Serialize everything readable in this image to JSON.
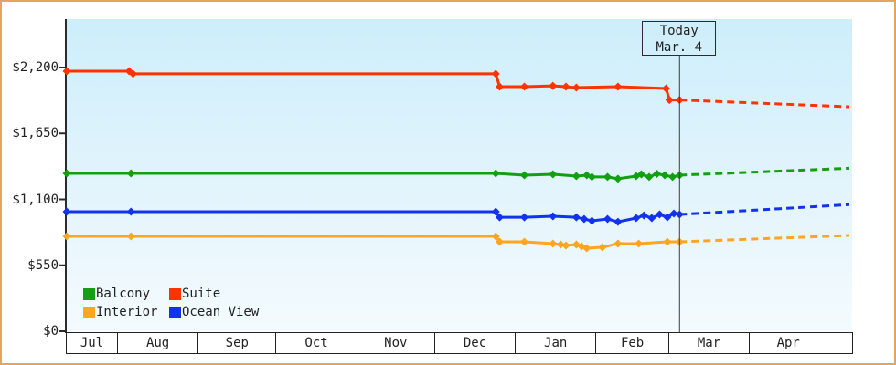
{
  "today": {
    "label": "Today",
    "date": "Mar. 4",
    "day": 235.7
  },
  "legend": [
    {
      "label": "Balcony",
      "color": "#12A012"
    },
    {
      "label": "Suite",
      "color": "#FF3300"
    },
    {
      "label": "Interior",
      "color": "#FFA51F"
    },
    {
      "label": "Ocean View",
      "color": "#1133EE"
    }
  ],
  "colors": {
    "frame_border": "#E8A45C",
    "axis": "#2B2B2B",
    "text": "#222222",
    "today_line": "#3C3C3C",
    "plot_top": "#CDEEFB",
    "plot_bottom": "#F4FBFE"
  },
  "chart_data": {
    "type": "line",
    "title": "",
    "xlabel": "",
    "ylabel": "",
    "grid": false,
    "legend_position": "bottom-left-inside",
    "ylim": [
      0,
      2600
    ],
    "y_ticks": [
      {
        "label": "$0",
        "value": 0
      },
      {
        "label": "$550",
        "value": 550
      },
      {
        "label": "$1,100",
        "value": 1100
      },
      {
        "label": "$1,650",
        "value": 1650
      },
      {
        "label": "$2,200",
        "value": 2200
      }
    ],
    "x_months": [
      {
        "label": "Jul",
        "days": 19.7
      },
      {
        "label": "Aug",
        "days": 31
      },
      {
        "label": "Sep",
        "days": 30
      },
      {
        "label": "Oct",
        "days": 31
      },
      {
        "label": "Nov",
        "days": 30
      },
      {
        "label": "Dec",
        "days": 31
      },
      {
        "label": "Jan",
        "days": 31
      },
      {
        "label": "Feb",
        "days": 28
      },
      {
        "label": "Mar",
        "days": 31
      },
      {
        "label": "Apr",
        "days": 30
      },
      {
        "label": "",
        "days": 9.3
      }
    ],
    "today": {
      "label": "Today",
      "date": "Mar. 4",
      "day": 235.7
    },
    "series": [
      {
        "name": "Suite",
        "color": "#FF3300",
        "solid": [
          [
            0,
            2170
          ],
          [
            24,
            2170
          ],
          [
            25.5,
            2148
          ],
          [
            165,
            2148
          ],
          [
            166.5,
            2040
          ],
          [
            176,
            2040
          ],
          [
            187,
            2047
          ],
          [
            192,
            2040
          ],
          [
            196,
            2033
          ],
          [
            212,
            2040
          ],
          [
            230.5,
            2025
          ],
          [
            231.8,
            1929
          ],
          [
            235.7,
            1929
          ]
        ],
        "projected": [
          [
            235.7,
            1929
          ],
          [
            301,
            1872
          ]
        ]
      },
      {
        "name": "Balcony",
        "color": "#12A012",
        "solid": [
          [
            0,
            1317
          ],
          [
            24.7,
            1317
          ],
          [
            165,
            1317
          ],
          [
            176,
            1302
          ],
          [
            187,
            1309
          ],
          [
            196,
            1294
          ],
          [
            200,
            1302
          ],
          [
            202,
            1287
          ],
          [
            208,
            1287
          ],
          [
            212,
            1272
          ],
          [
            219,
            1294
          ],
          [
            221,
            1309
          ],
          [
            224,
            1287
          ],
          [
            227,
            1313
          ],
          [
            230,
            1302
          ],
          [
            233,
            1287
          ],
          [
            235.7,
            1302
          ]
        ],
        "projected": [
          [
            235.7,
            1302
          ],
          [
            301,
            1360
          ]
        ]
      },
      {
        "name": "Ocean View",
        "color": "#1133EE",
        "solid": [
          [
            0,
            997
          ],
          [
            24.7,
            997
          ],
          [
            165,
            997
          ],
          [
            166.5,
            951
          ],
          [
            176,
            951
          ],
          [
            187,
            959
          ],
          [
            196,
            951
          ],
          [
            199,
            936
          ],
          [
            202,
            921
          ],
          [
            208,
            936
          ],
          [
            212,
            913
          ],
          [
            219,
            944
          ],
          [
            222,
            966
          ],
          [
            225,
            944
          ],
          [
            228,
            974
          ],
          [
            231,
            951
          ],
          [
            233.5,
            982
          ],
          [
            235.7,
            974
          ]
        ],
        "projected": [
          [
            235.7,
            974
          ],
          [
            301,
            1056
          ]
        ]
      },
      {
        "name": "Interior",
        "color": "#FFA51F",
        "solid": [
          [
            0,
            792
          ],
          [
            24.7,
            792
          ],
          [
            165,
            792
          ],
          [
            166.5,
            746
          ],
          [
            176,
            746
          ],
          [
            187,
            731
          ],
          [
            190,
            723
          ],
          [
            192,
            716
          ],
          [
            196,
            723
          ],
          [
            198,
            708
          ],
          [
            200,
            693
          ],
          [
            206,
            700
          ],
          [
            212,
            731
          ],
          [
            220,
            731
          ],
          [
            231,
            746
          ],
          [
            235.7,
            746
          ]
        ],
        "projected": [
          [
            235.7,
            746
          ],
          [
            301,
            799
          ]
        ]
      }
    ]
  }
}
